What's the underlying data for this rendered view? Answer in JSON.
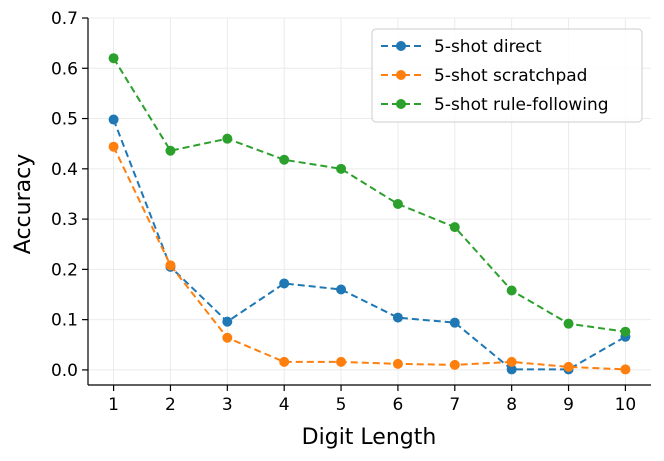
{
  "chart_data": {
    "type": "line",
    "title": "",
    "xlabel": "Digit Length",
    "ylabel": "Accuracy",
    "x": [
      1,
      2,
      3,
      4,
      5,
      6,
      7,
      8,
      9,
      10
    ],
    "xlim": [
      0.55,
      10.45
    ],
    "ylim": [
      -0.03,
      0.7
    ],
    "yticks": [
      "0.0",
      "0.1",
      "0.2",
      "0.3",
      "0.4",
      "0.5",
      "0.6",
      "0.7"
    ],
    "xticks": [
      "1",
      "2",
      "3",
      "4",
      "5",
      "6",
      "7",
      "8",
      "9",
      "10"
    ],
    "grid": true,
    "legend_position": "top-right",
    "series": [
      {
        "name": "5-shot direct",
        "color": "#1f77b4",
        "values": [
          0.498,
          0.205,
          0.096,
          0.172,
          0.16,
          0.104,
          0.094,
          0.001,
          0.001,
          0.066
        ]
      },
      {
        "name": "5-shot scratchpad",
        "color": "#ff7f0e",
        "values": [
          0.444,
          0.208,
          0.064,
          0.016,
          0.016,
          0.012,
          0.01,
          0.016,
          0.006,
          0.001
        ]
      },
      {
        "name": "5-shot rule-following",
        "color": "#2ca02c",
        "values": [
          0.62,
          0.436,
          0.46,
          0.418,
          0.4,
          0.33,
          0.284,
          0.158,
          0.092,
          0.076
        ]
      }
    ]
  }
}
